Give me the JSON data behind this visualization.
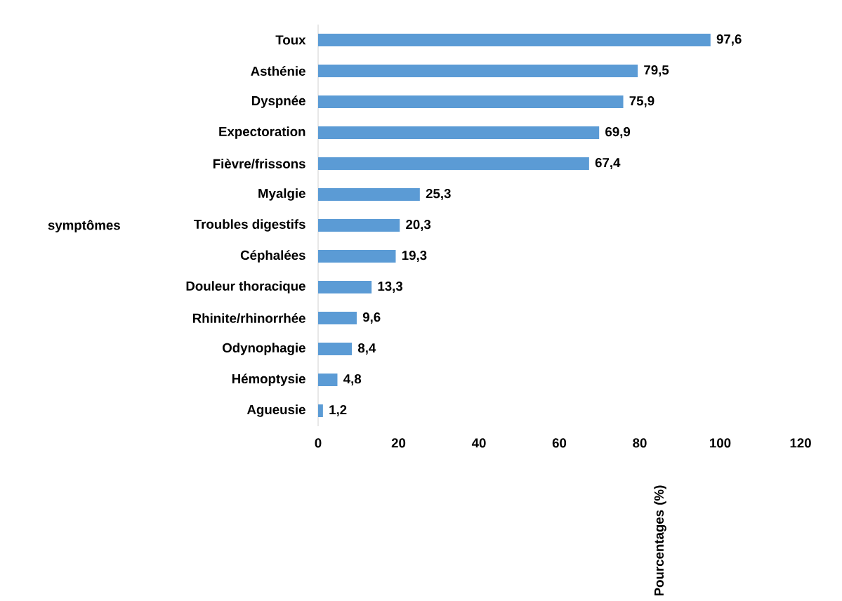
{
  "chart_data": {
    "type": "bar",
    "orientation": "horizontal",
    "categories": [
      "Toux",
      "Asthénie",
      "Dyspnée",
      "Expectoration",
      "Fièvre/frissons",
      "Myalgie",
      "Troubles digestifs",
      "Céphalées",
      "Douleur thoracique",
      "Rhinite/rhinorrhée",
      "Odynophagie",
      "Hémoptysie",
      "Agueusie"
    ],
    "values": [
      97.6,
      79.5,
      75.9,
      69.9,
      67.4,
      25.3,
      20.3,
      19.3,
      13.3,
      9.6,
      8.4,
      4.8,
      1.2
    ],
    "value_labels": [
      "97,6",
      "79,5",
      "75,9",
      "69,9",
      "67,4",
      "25,3",
      "20,3",
      "19,3",
      "13,3",
      "9,6",
      "8,4",
      "4,8",
      "1,2"
    ],
    "color": "#5b9bd5",
    "annotations": [
      "Pourcentages (%)",
      "symptômes"
    ],
    "xlim": [
      0,
      120
    ],
    "xticks": [
      0,
      20,
      40,
      60,
      80,
      100,
      120
    ]
  }
}
